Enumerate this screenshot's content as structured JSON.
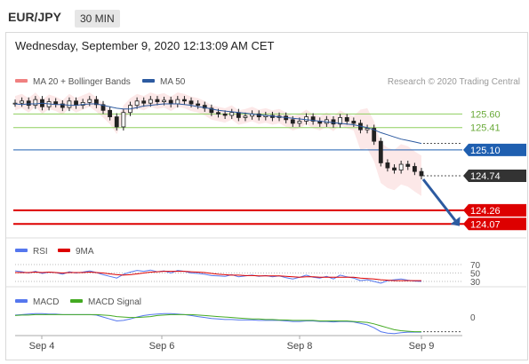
{
  "header": {
    "pair": "EUR/JPY",
    "timeframe": "30 MIN"
  },
  "datetime": "Wednesday, September 9, 2020 12:13:09 AM CET",
  "colors": {
    "ma20": "#f08080",
    "ma50": "#2c5aa0",
    "support": "#dd0000",
    "pivot": "#1f5fb0",
    "resistance": "#8fcf5f",
    "last": "#333333",
    "rsi": "#5577ee",
    "ma9": "#dd0000",
    "macd": "#5577ee",
    "signal": "#44aa22",
    "arrow": "#2c5aa0"
  },
  "chart_data": [
    {
      "type": "line",
      "title": "",
      "legend": [
        "MA 20 + Bollinger Bands",
        "MA 50"
      ],
      "credit": "Research © 2020 Trading Central",
      "x_ticks": [
        "Sep 4",
        "Sep 6",
        "Sep 8",
        "Sep 9"
      ],
      "ylim": [
        123.95,
        125.95
      ],
      "levels": [
        {
          "label": "125.60",
          "value": 125.6,
          "kind": "resistance"
        },
        {
          "label": "125.41",
          "value": 125.41,
          "kind": "resistance"
        },
        {
          "label": "125.10",
          "value": 125.1,
          "kind": "pivot"
        },
        {
          "label": "124.74",
          "value": 124.74,
          "kind": "last"
        },
        {
          "label": "124.26",
          "value": 124.26,
          "kind": "support"
        },
        {
          "label": "124.07",
          "value": 124.07,
          "kind": "support"
        }
      ],
      "series": [
        {
          "name": "Price",
          "values": [
            125.75,
            125.78,
            125.72,
            125.8,
            125.7,
            125.77,
            125.74,
            125.69,
            125.78,
            125.72,
            125.76,
            125.8,
            125.73,
            125.65,
            125.56,
            125.42,
            125.62,
            125.72,
            125.78,
            125.75,
            125.8,
            125.77,
            125.79,
            125.74,
            125.8,
            125.78,
            125.74,
            125.72,
            125.68,
            125.62,
            125.6,
            125.58,
            125.62,
            125.55,
            125.57,
            125.6,
            125.56,
            125.58,
            125.55,
            125.57,
            125.52,
            125.47,
            125.5,
            125.56,
            125.5,
            125.47,
            125.52,
            125.46,
            125.55,
            125.5,
            125.47,
            125.38,
            125.4,
            125.22,
            124.92,
            124.85,
            124.82,
            124.9,
            124.87,
            124.8,
            124.74
          ]
        },
        {
          "name": "MA 50",
          "values": [
            125.74,
            125.73,
            125.74,
            125.74,
            125.75,
            125.74,
            125.73,
            125.73,
            125.72,
            125.72,
            125.73,
            125.74,
            125.74,
            125.72,
            125.7,
            125.68,
            125.67,
            125.67,
            125.69,
            125.71,
            125.72,
            125.73,
            125.74,
            125.74,
            125.74,
            125.73,
            125.72,
            125.7,
            125.69,
            125.67,
            125.65,
            125.64,
            125.63,
            125.62,
            125.61,
            125.6,
            125.59,
            125.58,
            125.57,
            125.56,
            125.55,
            125.54,
            125.53,
            125.52,
            125.51,
            125.5,
            125.49,
            125.48,
            125.47,
            125.46,
            125.45,
            125.43,
            125.41,
            125.38,
            125.34,
            125.31,
            125.28,
            125.25,
            125.23,
            125.21,
            125.19
          ]
        }
      ],
      "target": 124.07
    },
    {
      "type": "line",
      "legend": [
        "RSI",
        "9MA"
      ],
      "y_ticks": [
        "70",
        "50",
        "30"
      ],
      "ylim": [
        28,
        72
      ],
      "series": [
        {
          "name": "RSI",
          "values": [
            55,
            53,
            50,
            54,
            49,
            52,
            51,
            47,
            53,
            50,
            52,
            55,
            51,
            46,
            42,
            38,
            47,
            52,
            56,
            54,
            57,
            53,
            55,
            50,
            56,
            54,
            50,
            49,
            47,
            44,
            43,
            42,
            46,
            41,
            43,
            45,
            42,
            44,
            41,
            43,
            39,
            36,
            40,
            45,
            40,
            38,
            42,
            36,
            45,
            41,
            38,
            32,
            34,
            30,
            26,
            32,
            34,
            36,
            33,
            31,
            30
          ]
        },
        {
          "name": "9MA",
          "values": [
            51,
            51,
            51,
            52,
            51,
            52,
            51,
            50,
            51,
            51,
            51,
            52,
            51,
            50,
            48,
            46,
            45,
            46,
            48,
            50,
            52,
            53,
            54,
            54,
            54,
            54,
            53,
            52,
            51,
            49,
            47,
            46,
            45,
            45,
            44,
            44,
            43,
            43,
            43,
            43,
            42,
            41,
            40,
            41,
            41,
            40,
            40,
            40,
            40,
            40,
            40,
            38,
            37,
            36,
            34,
            33,
            32,
            32,
            32,
            32,
            32
          ]
        }
      ]
    },
    {
      "type": "line",
      "legend": [
        "MACD",
        "MACD Signal"
      ],
      "y_ticks": [
        "0"
      ],
      "ylim": [
        -0.38,
        0.22
      ],
      "series": [
        {
          "name": "MACD",
          "values": [
            0.04,
            0.05,
            0.06,
            0.07,
            0.07,
            0.06,
            0.06,
            0.05,
            0.05,
            0.05,
            0.05,
            0.05,
            0.04,
            0.0,
            -0.04,
            -0.08,
            -0.07,
            -0.04,
            0.0,
            0.03,
            0.05,
            0.06,
            0.07,
            0.07,
            0.06,
            0.05,
            0.03,
            0.01,
            -0.01,
            -0.03,
            -0.04,
            -0.05,
            -0.05,
            -0.06,
            -0.06,
            -0.06,
            -0.07,
            -0.07,
            -0.07,
            -0.07,
            -0.08,
            -0.09,
            -0.09,
            -0.08,
            -0.08,
            -0.09,
            -0.09,
            -0.1,
            -0.09,
            -0.09,
            -0.1,
            -0.13,
            -0.16,
            -0.22,
            -0.3,
            -0.33,
            -0.34,
            -0.32,
            -0.31,
            -0.31,
            -0.31
          ]
        },
        {
          "name": "MACD Signal",
          "values": [
            0.03,
            0.04,
            0.04,
            0.05,
            0.05,
            0.05,
            0.05,
            0.05,
            0.05,
            0.05,
            0.05,
            0.05,
            0.05,
            0.04,
            0.03,
            0.01,
            0.0,
            -0.01,
            -0.01,
            0.0,
            0.01,
            0.03,
            0.04,
            0.05,
            0.05,
            0.05,
            0.05,
            0.04,
            0.03,
            0.02,
            0.01,
            0.0,
            -0.01,
            -0.02,
            -0.03,
            -0.04,
            -0.04,
            -0.05,
            -0.05,
            -0.06,
            -0.06,
            -0.07,
            -0.07,
            -0.07,
            -0.07,
            -0.08,
            -0.08,
            -0.08,
            -0.08,
            -0.08,
            -0.09,
            -0.1,
            -0.11,
            -0.14,
            -0.18,
            -0.22,
            -0.26,
            -0.28,
            -0.29,
            -0.3,
            -0.3
          ]
        }
      ]
    }
  ]
}
